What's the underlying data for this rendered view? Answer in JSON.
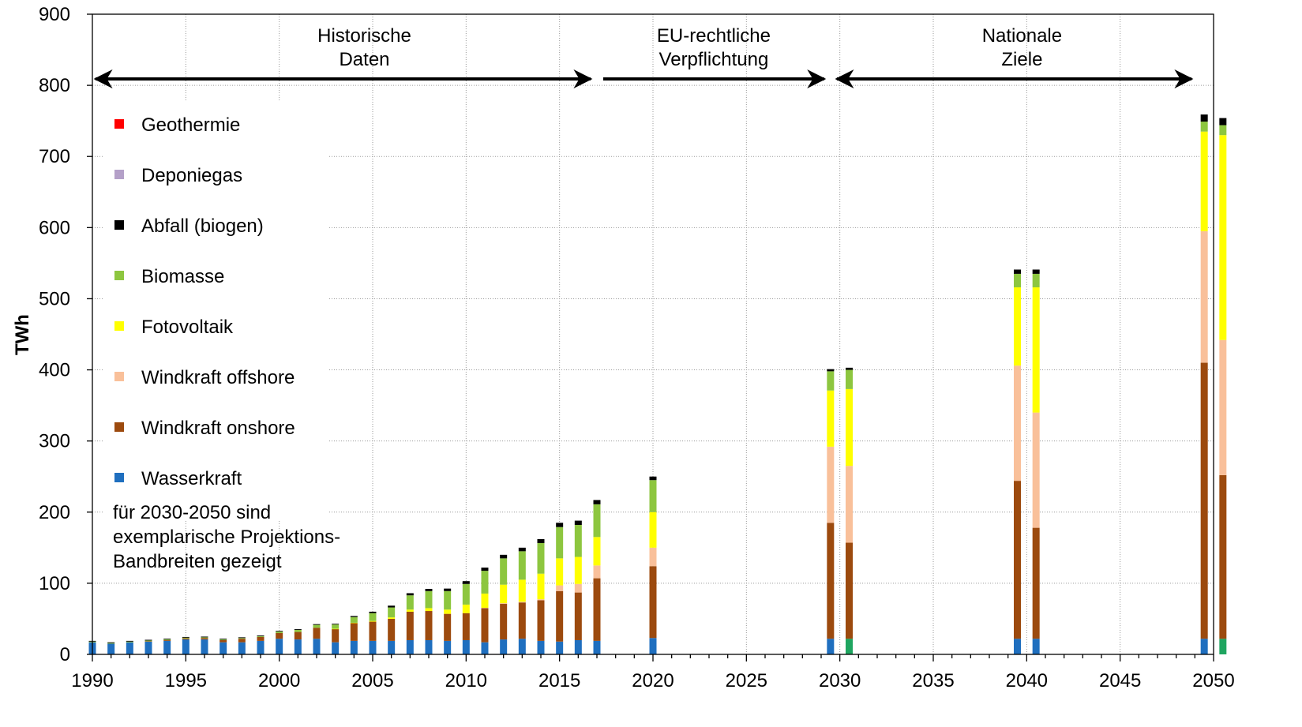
{
  "chart_data": {
    "type": "bar",
    "stacked": true,
    "ylabel": "TWh",
    "xlabel": "",
    "xlim": [
      1990,
      2050
    ],
    "ylim": [
      0,
      900
    ],
    "xticks": [
      "1990",
      "1995",
      "2000",
      "2005",
      "2010",
      "2015",
      "2020",
      "2025",
      "2030",
      "2035",
      "2040",
      "2045",
      "2050"
    ],
    "yticks": [
      "0",
      "100",
      "200",
      "300",
      "400",
      "500",
      "600",
      "700",
      "800",
      "900"
    ],
    "grid": true,
    "legend_position": "left",
    "periods": [
      {
        "label_line1": "Historische",
        "label_line2": "Daten",
        "from": 1990,
        "to": 2017
      },
      {
        "label_line1": "EU-rechtliche",
        "label_line2": "Verpflichtung",
        "from": 2017,
        "to": 2029.5
      },
      {
        "label_line1": "Nationale",
        "label_line2": "Ziele",
        "from": 2029.5,
        "to": 2050
      }
    ],
    "note": [
      "für 2030-2050 sind",
      "exemplarische Projektions-",
      "Bandbreiten gezeigt"
    ],
    "series": [
      {
        "name": "Geothermie",
        "color": "#ff0000"
      },
      {
        "name": "Deponiegas",
        "color": "#b4a0c8"
      },
      {
        "name": "Abfall (biogen)",
        "color": "#000000"
      },
      {
        "name": "Biomasse",
        "color": "#8dc63f"
      },
      {
        "name": "Fotovoltaik",
        "color": "#ffff00"
      },
      {
        "name": "Windkraft offshore",
        "color": "#f9c09a"
      },
      {
        "name": "Windkraft onshore",
        "color": "#9c4a0e"
      },
      {
        "name": "Wasserkraft",
        "color": "#1f6fbf"
      }
    ],
    "stack_order": [
      "Wasserkraft",
      "Windkraft onshore",
      "Windkraft offshore",
      "Fotovoltaik",
      "Biomasse",
      "Abfall (biogen)",
      "Deponiegas",
      "Geothermie"
    ],
    "bars": [
      {
        "x": 1990,
        "values": [
          17,
          0,
          0,
          0,
          1,
          1,
          0,
          0
        ]
      },
      {
        "x": 1991,
        "values": [
          15,
          0,
          0,
          0,
          1,
          1,
          0,
          0
        ]
      },
      {
        "x": 1992,
        "values": [
          17,
          0,
          0,
          0,
          1,
          1,
          0,
          0
        ]
      },
      {
        "x": 1993,
        "values": [
          18,
          0.5,
          0,
          0,
          1,
          1,
          0,
          0
        ]
      },
      {
        "x": 1994,
        "values": [
          19,
          1,
          0,
          0,
          1,
          1,
          0,
          0
        ]
      },
      {
        "x": 1995,
        "values": [
          21,
          1.5,
          0,
          0,
          1,
          1,
          0,
          0
        ]
      },
      {
        "x": 1996,
        "values": [
          21,
          2,
          0,
          0,
          1,
          1,
          0,
          0
        ]
      },
      {
        "x": 1997,
        "values": [
          17,
          3,
          0,
          0,
          1,
          1,
          0,
          0
        ]
      },
      {
        "x": 1998,
        "values": [
          17,
          5,
          0,
          0,
          1,
          1,
          0,
          0
        ]
      },
      {
        "x": 1999,
        "values": [
          19,
          5.5,
          0,
          0,
          1,
          1,
          0,
          0
        ]
      },
      {
        "x": 2000,
        "values": [
          22,
          8,
          0,
          0,
          2,
          1,
          0,
          0
        ]
      },
      {
        "x": 2001,
        "values": [
          21,
          10.5,
          0,
          0,
          3,
          1,
          0,
          0
        ]
      },
      {
        "x": 2002,
        "values": [
          22,
          15.5,
          0,
          0,
          4,
          1,
          0,
          0
        ]
      },
      {
        "x": 2003,
        "values": [
          17,
          18.5,
          0,
          0.5,
          6,
          1,
          0,
          0
        ]
      },
      {
        "x": 2004,
        "values": [
          19,
          25,
          0,
          0.5,
          8,
          1.5,
          0,
          0
        ]
      },
      {
        "x": 2005,
        "values": [
          19,
          27,
          0,
          1,
          11,
          2,
          0,
          0
        ]
      },
      {
        "x": 2006,
        "values": [
          19,
          31,
          0,
          2,
          14,
          2.5,
          0,
          0
        ]
      },
      {
        "x": 2007,
        "values": [
          20,
          40,
          0,
          3,
          20,
          3,
          0,
          0
        ]
      },
      {
        "x": 2008,
        "values": [
          20,
          41,
          0,
          4,
          24,
          3,
          0,
          0
        ]
      },
      {
        "x": 2009,
        "values": [
          19,
          38,
          0,
          6,
          26,
          3.5,
          0,
          0
        ]
      },
      {
        "x": 2010,
        "values": [
          20,
          38,
          0,
          12,
          29,
          4,
          0,
          0
        ]
      },
      {
        "x": 2011,
        "values": [
          17,
          48,
          0.5,
          20,
          32,
          4.5,
          0,
          0
        ]
      },
      {
        "x": 2012,
        "values": [
          21,
          50,
          1,
          26,
          37,
          5,
          0,
          0
        ]
      },
      {
        "x": 2013,
        "values": [
          22,
          51,
          1,
          31,
          40,
          5,
          0,
          0
        ]
      },
      {
        "x": 2014,
        "values": [
          19,
          57,
          1.5,
          36,
          43,
          5.5,
          0,
          0
        ]
      },
      {
        "x": 2015,
        "values": [
          18,
          71,
          8,
          38,
          44,
          6,
          0,
          0
        ]
      },
      {
        "x": 2016,
        "values": [
          20,
          67,
          12,
          38,
          45,
          6,
          0,
          0
        ]
      },
      {
        "x": 2017,
        "values": [
          19,
          88,
          18,
          40,
          46,
          6,
          0,
          0
        ]
      },
      {
        "x": 2020,
        "values": [
          23,
          101,
          26,
          50,
          45,
          5,
          0,
          0
        ]
      },
      {
        "x": 2029.5,
        "values": [
          22,
          163,
          107,
          79,
          27,
          3,
          0,
          0
        ]
      },
      {
        "x": 2030.5,
        "values": [
          22,
          135,
          108,
          108,
          27,
          3,
          0,
          0
        ]
      },
      {
        "x": 2039.5,
        "values": [
          22,
          222,
          162,
          110,
          19,
          6,
          0,
          0
        ]
      },
      {
        "x": 2040.5,
        "values": [
          22,
          156,
          162,
          176,
          19,
          6,
          0,
          0
        ]
      },
      {
        "x": 2049.5,
        "values": [
          22,
          388,
          185,
          140,
          14,
          10,
          0,
          0
        ]
      },
      {
        "x": 2050.5,
        "values": [
          22,
          230,
          190,
          288,
          14,
          10,
          0,
          0
        ]
      }
    ]
  }
}
